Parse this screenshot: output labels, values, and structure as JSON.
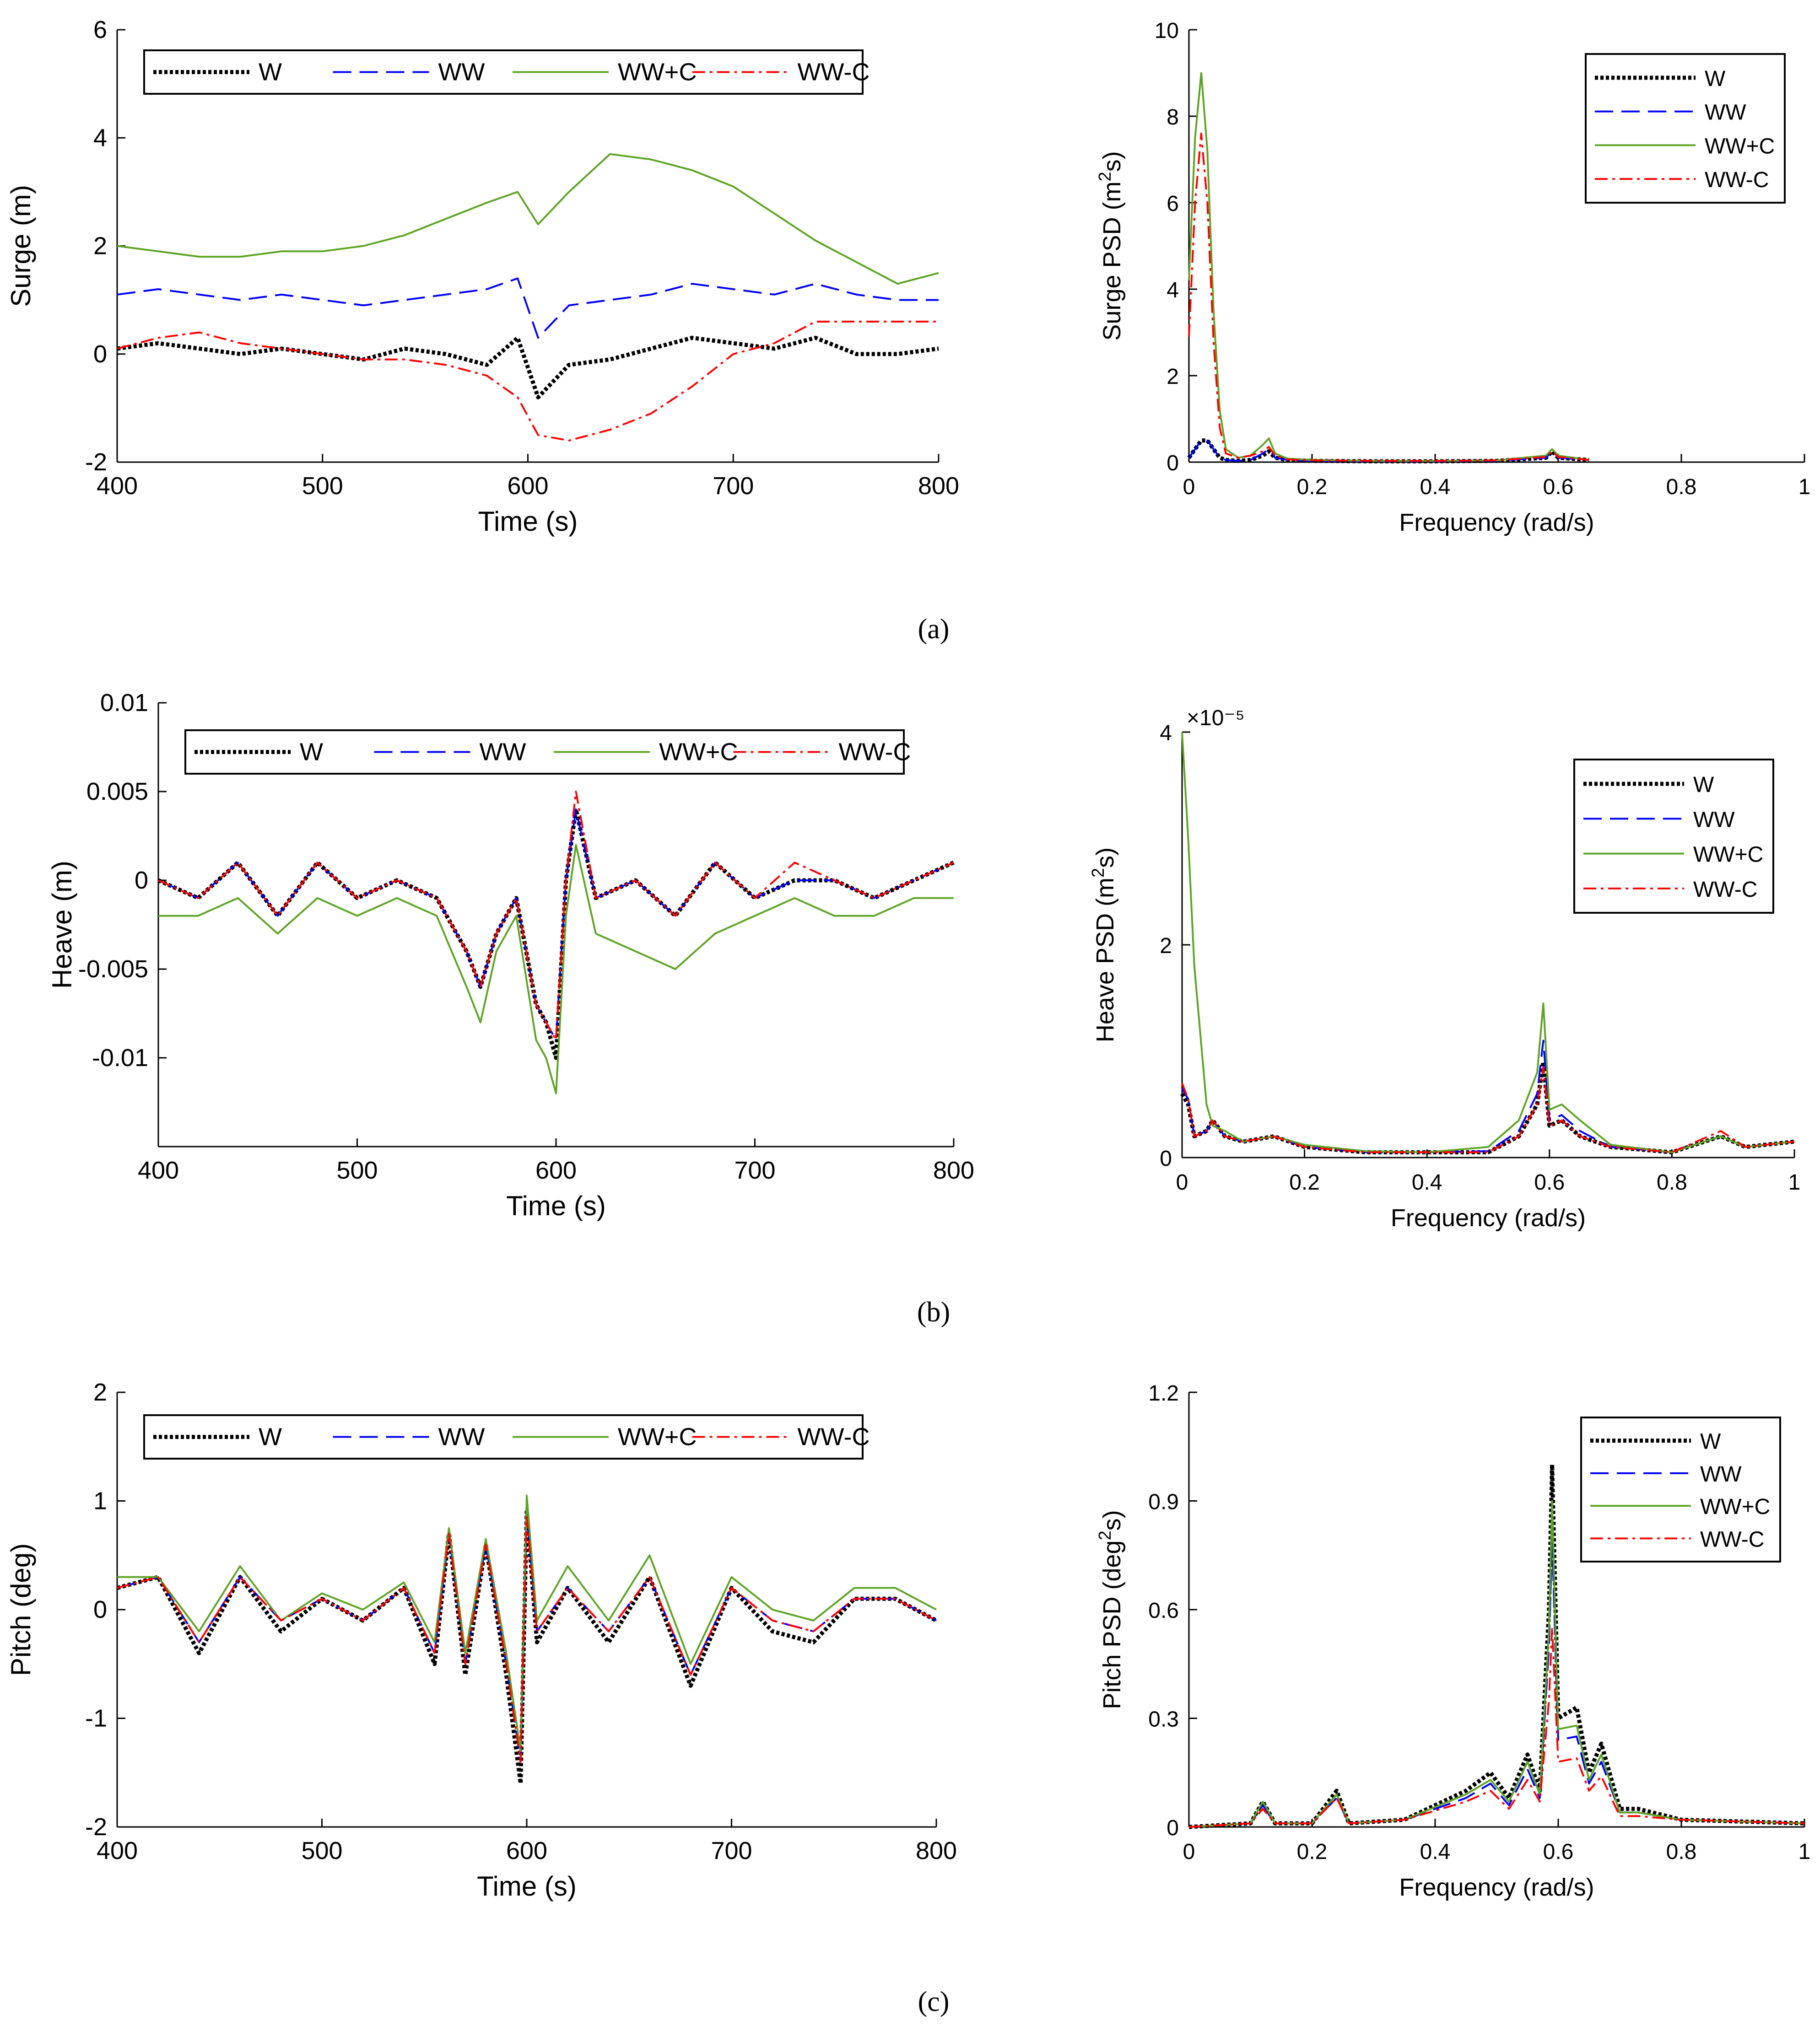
{
  "colors": {
    "W": "#000000",
    "WW": "#0000ff",
    "WW+C": "#5da423",
    "WW-C": "#ff0000"
  },
  "legend_entries": [
    "W",
    "WW",
    "WW+C",
    "WW-C"
  ],
  "panel_labels": [
    "a",
    "b",
    "c"
  ],
  "chart_data": [
    {
      "id": "surge_time",
      "type": "line",
      "xlabel": "Time (s)",
      "ylabel": "Surge (m)",
      "xlim": [
        400,
        800
      ],
      "ylim": [
        -2,
        6
      ],
      "xticks": [
        400,
        500,
        600,
        700,
        800
      ],
      "yticks": [
        -2,
        0,
        2,
        4,
        6
      ],
      "xtick_labels": [
        "400",
        "500",
        "600",
        "700",
        "800"
      ],
      "ytick_labels": [
        "-2",
        "0",
        "2",
        "4",
        "6"
      ],
      "legend": "top-horizontal",
      "x": [
        400,
        420,
        440,
        460,
        480,
        500,
        520,
        540,
        560,
        580,
        595,
        605,
        620,
        640,
        660,
        680,
        700,
        720,
        740,
        760,
        780,
        800
      ],
      "series": [
        {
          "name": "W",
          "values": [
            0.1,
            0.2,
            0.1,
            0.0,
            0.1,
            0.0,
            -0.1,
            0.1,
            0.0,
            -0.2,
            0.3,
            -0.8,
            -0.2,
            -0.1,
            0.1,
            0.3,
            0.2,
            0.1,
            0.3,
            0.0,
            0.0,
            0.1
          ]
        },
        {
          "name": "WW",
          "values": [
            1.1,
            1.2,
            1.1,
            1.0,
            1.1,
            1.0,
            0.9,
            1.0,
            1.1,
            1.2,
            1.4,
            0.3,
            0.9,
            1.0,
            1.1,
            1.3,
            1.2,
            1.1,
            1.3,
            1.1,
            1.0,
            1.0
          ]
        },
        {
          "name": "WW+C",
          "values": [
            2.0,
            1.9,
            1.8,
            1.8,
            1.9,
            1.9,
            2.0,
            2.2,
            2.5,
            2.8,
            3.0,
            2.4,
            3.0,
            3.7,
            3.6,
            3.4,
            3.1,
            2.6,
            2.1,
            1.7,
            1.3,
            1.5
          ]
        },
        {
          "name": "WW-C",
          "values": [
            0.1,
            0.3,
            0.4,
            0.2,
            0.1,
            0.0,
            -0.1,
            -0.1,
            -0.2,
            -0.4,
            -0.8,
            -1.5,
            -1.6,
            -1.4,
            -1.1,
            -0.6,
            0.0,
            0.2,
            0.6,
            0.6,
            0.6,
            0.6
          ]
        }
      ]
    },
    {
      "id": "surge_psd",
      "type": "line",
      "xlabel": "Frequency (rad/s)",
      "ylabel": "Surge PSD (m²s)",
      "xlim": [
        0,
        1
      ],
      "ylim": [
        0,
        10
      ],
      "xticks": [
        0,
        0.2,
        0.4,
        0.6,
        0.8,
        1
      ],
      "yticks": [
        0,
        2,
        4,
        6,
        8,
        10
      ],
      "xtick_labels": [
        "0",
        "0.2",
        "0.4",
        "0.6",
        "0.8",
        "1"
      ],
      "ytick_labels": [
        "0",
        "2",
        "4",
        "6",
        "8",
        "10"
      ],
      "legend": "top-right",
      "x": [
        0,
        0.01,
        0.02,
        0.03,
        0.04,
        0.05,
        0.06,
        0.08,
        0.1,
        0.12,
        0.13,
        0.14,
        0.16,
        0.2,
        0.3,
        0.4,
        0.5,
        0.58,
        0.59,
        0.6,
        0.65
      ],
      "series": [
        {
          "name": "W",
          "values": [
            0.1,
            0.3,
            0.5,
            0.5,
            0.3,
            0.1,
            0.05,
            0.03,
            0.05,
            0.15,
            0.25,
            0.1,
            0.05,
            0.03,
            0.02,
            0.02,
            0.03,
            0.1,
            0.25,
            0.1,
            0.05
          ]
        },
        {
          "name": "WW",
          "values": [
            0.1,
            0.3,
            0.5,
            0.5,
            0.3,
            0.1,
            0.05,
            0.03,
            0.05,
            0.2,
            0.3,
            0.1,
            0.05,
            0.03,
            0.02,
            0.02,
            0.03,
            0.1,
            0.25,
            0.1,
            0.05
          ]
        },
        {
          "name": "WW+C",
          "values": [
            4.2,
            7.5,
            9.0,
            7.2,
            3.5,
            1.2,
            0.3,
            0.1,
            0.15,
            0.4,
            0.55,
            0.2,
            0.08,
            0.05,
            0.03,
            0.03,
            0.04,
            0.15,
            0.3,
            0.15,
            0.05
          ]
        },
        {
          "name": "WW-C",
          "values": [
            2.9,
            6.0,
            7.6,
            6.0,
            2.8,
            0.8,
            0.2,
            0.1,
            0.15,
            0.25,
            0.35,
            0.15,
            0.06,
            0.04,
            0.03,
            0.03,
            0.04,
            0.12,
            0.25,
            0.12,
            0.05
          ]
        }
      ]
    },
    {
      "id": "heave_time",
      "type": "line",
      "xlabel": "Time (s)",
      "ylabel": "Heave (m)",
      "xlim": [
        400,
        800
      ],
      "ylim": [
        -0.015,
        0.01
      ],
      "xticks": [
        400,
        500,
        600,
        700,
        800
      ],
      "yticks": [
        -0.01,
        -0.005,
        0,
        0.005,
        0.01
      ],
      "xtick_labels": [
        "400",
        "500",
        "600",
        "700",
        "800"
      ],
      "ytick_labels": [
        "-0.01",
        "-0.005",
        "0",
        "0.005",
        "0.01"
      ],
      "legend": "top-horizontal",
      "x": [
        400,
        420,
        440,
        460,
        480,
        500,
        520,
        540,
        555,
        562,
        570,
        580,
        590,
        595,
        600,
        605,
        610,
        620,
        640,
        660,
        680,
        700,
        720,
        740,
        760,
        780,
        800
      ],
      "series": [
        {
          "name": "W",
          "values": [
            0.0,
            -0.001,
            0.001,
            -0.002,
            0.001,
            -0.001,
            0.0,
            -0.001,
            -0.004,
            -0.006,
            -0.003,
            -0.001,
            -0.007,
            -0.008,
            -0.01,
            0.0,
            0.004,
            -0.001,
            0.0,
            -0.002,
            0.001,
            -0.001,
            0.0,
            0.0,
            -0.001,
            0.0,
            0.001
          ]
        },
        {
          "name": "WW",
          "values": [
            0.0,
            -0.001,
            0.001,
            -0.002,
            0.001,
            -0.001,
            0.0,
            -0.001,
            -0.004,
            -0.006,
            -0.003,
            -0.001,
            -0.007,
            -0.008,
            -0.009,
            0.0,
            0.004,
            -0.001,
            0.0,
            -0.002,
            0.001,
            -0.001,
            0.0,
            0.0,
            -0.001,
            0.0,
            0.001
          ]
        },
        {
          "name": "WW+C",
          "values": [
            -0.002,
            -0.002,
            -0.001,
            -0.003,
            -0.001,
            -0.002,
            -0.001,
            -0.002,
            -0.006,
            -0.008,
            -0.004,
            -0.002,
            -0.009,
            -0.01,
            -0.012,
            -0.002,
            0.002,
            -0.003,
            -0.004,
            -0.005,
            -0.003,
            -0.002,
            -0.001,
            -0.002,
            -0.002,
            -0.001,
            -0.001
          ]
        },
        {
          "name": "WW-C",
          "values": [
            0.0,
            -0.001,
            0.001,
            -0.002,
            0.001,
            -0.001,
            0.0,
            -0.001,
            -0.004,
            -0.006,
            -0.003,
            -0.001,
            -0.007,
            -0.008,
            -0.009,
            0.0,
            0.005,
            -0.001,
            0.0,
            -0.002,
            0.001,
            -0.001,
            0.001,
            0.0,
            -0.001,
            0.0,
            0.001
          ]
        }
      ]
    },
    {
      "id": "heave_psd",
      "type": "line",
      "xlabel": "Frequency (rad/s)",
      "ylabel": "Heave PSD (m²s)",
      "exponent_label": "×10⁻⁵",
      "xlim": [
        0,
        1
      ],
      "ylim": [
        0,
        4
      ],
      "xticks": [
        0,
        0.2,
        0.4,
        0.6,
        0.8,
        1
      ],
      "yticks": [
        0,
        2,
        4
      ],
      "xtick_labels": [
        "0",
        "0.2",
        "0.4",
        "0.6",
        "0.8",
        "1"
      ],
      "ytick_labels": [
        "0",
        "2",
        "4"
      ],
      "legend": "top-right",
      "x": [
        0,
        0.01,
        0.02,
        0.04,
        0.05,
        0.07,
        0.1,
        0.15,
        0.2,
        0.3,
        0.4,
        0.5,
        0.55,
        0.58,
        0.59,
        0.6,
        0.62,
        0.65,
        0.7,
        0.8,
        0.88,
        0.92,
        1.0
      ],
      "series": [
        {
          "name": "W",
          "values": [
            0.6,
            0.5,
            0.2,
            0.25,
            0.35,
            0.2,
            0.15,
            0.2,
            0.1,
            0.05,
            0.05,
            0.05,
            0.2,
            0.5,
            0.9,
            0.3,
            0.35,
            0.2,
            0.1,
            0.05,
            0.2,
            0.1,
            0.15
          ]
        },
        {
          "name": "WW",
          "values": [
            0.65,
            0.55,
            0.2,
            0.25,
            0.35,
            0.2,
            0.15,
            0.2,
            0.1,
            0.05,
            0.05,
            0.06,
            0.25,
            0.6,
            1.1,
            0.35,
            0.4,
            0.25,
            0.1,
            0.05,
            0.2,
            0.1,
            0.15
          ]
        },
        {
          "name": "WW+C",
          "values": [
            4.0,
            3.0,
            1.8,
            0.5,
            0.3,
            0.25,
            0.15,
            0.2,
            0.12,
            0.06,
            0.05,
            0.1,
            0.35,
            0.8,
            1.45,
            0.45,
            0.5,
            0.35,
            0.12,
            0.05,
            0.2,
            0.1,
            0.15
          ]
        },
        {
          "name": "WW-C",
          "values": [
            0.7,
            0.55,
            0.2,
            0.25,
            0.35,
            0.2,
            0.15,
            0.2,
            0.1,
            0.05,
            0.05,
            0.05,
            0.2,
            0.5,
            0.85,
            0.3,
            0.35,
            0.2,
            0.1,
            0.05,
            0.25,
            0.1,
            0.15
          ]
        }
      ]
    },
    {
      "id": "pitch_time",
      "type": "line",
      "xlabel": "Time (s)",
      "ylabel": "Pitch (deg)",
      "xlim": [
        400,
        800
      ],
      "ylim": [
        -2,
        2
      ],
      "xticks": [
        400,
        500,
        600,
        700,
        800
      ],
      "yticks": [
        -2,
        -1,
        0,
        1,
        2
      ],
      "xtick_labels": [
        "400",
        "500",
        "600",
        "700",
        "800"
      ],
      "ytick_labels": [
        "-2",
        "-1",
        "0",
        "1",
        "2"
      ],
      "legend": "top-horizontal",
      "x": [
        400,
        420,
        440,
        460,
        480,
        500,
        520,
        540,
        555,
        562,
        570,
        580,
        590,
        597,
        600,
        605,
        620,
        640,
        660,
        680,
        700,
        720,
        740,
        760,
        780,
        800
      ],
      "series": [
        {
          "name": "W",
          "values": [
            0.2,
            0.3,
            -0.4,
            0.3,
            -0.2,
            0.1,
            -0.1,
            0.2,
            -0.5,
            0.7,
            -0.6,
            0.6,
            -0.6,
            -1.6,
            0.9,
            -0.3,
            0.2,
            -0.3,
            0.3,
            -0.7,
            0.2,
            -0.2,
            -0.3,
            0.1,
            0.1,
            -0.1
          ]
        },
        {
          "name": "WW",
          "values": [
            0.2,
            0.3,
            -0.3,
            0.3,
            -0.1,
            0.1,
            -0.1,
            0.2,
            -0.4,
            0.7,
            -0.5,
            0.6,
            -0.5,
            -1.4,
            0.9,
            -0.2,
            0.2,
            -0.2,
            0.3,
            -0.6,
            0.2,
            -0.1,
            -0.2,
            0.1,
            0.1,
            -0.1
          ]
        },
        {
          "name": "WW+C",
          "values": [
            0.3,
            0.3,
            -0.2,
            0.4,
            -0.1,
            0.15,
            0.0,
            0.25,
            -0.3,
            0.75,
            -0.4,
            0.65,
            -0.4,
            -1.3,
            1.05,
            -0.1,
            0.4,
            -0.1,
            0.5,
            -0.5,
            0.3,
            0.0,
            -0.1,
            0.2,
            0.2,
            0.0
          ]
        },
        {
          "name": "WW-C",
          "values": [
            0.2,
            0.3,
            -0.3,
            0.3,
            -0.1,
            0.1,
            -0.1,
            0.2,
            -0.4,
            0.7,
            -0.5,
            0.6,
            -0.5,
            -1.4,
            0.85,
            -0.2,
            0.2,
            -0.2,
            0.3,
            -0.6,
            0.2,
            -0.1,
            -0.2,
            0.1,
            0.1,
            -0.1
          ]
        }
      ]
    },
    {
      "id": "pitch_psd",
      "type": "line",
      "xlabel": "Frequency (rad/s)",
      "ylabel": "Pitch PSD (deg²s)",
      "xlim": [
        0,
        1
      ],
      "ylim": [
        0,
        1.2
      ],
      "xticks": [
        0,
        0.2,
        0.4,
        0.6,
        0.8,
        1
      ],
      "yticks": [
        0,
        0.3,
        0.6,
        0.9,
        1.2
      ],
      "xtick_labels": [
        "0",
        "0.2",
        "0.4",
        "0.6",
        "0.8",
        "1"
      ],
      "ytick_labels": [
        "0",
        "0.3",
        "0.6",
        "0.9",
        "1.2"
      ],
      "legend": "top-right",
      "x": [
        0,
        0.1,
        0.12,
        0.14,
        0.2,
        0.24,
        0.26,
        0.35,
        0.45,
        0.49,
        0.52,
        0.55,
        0.57,
        0.585,
        0.59,
        0.6,
        0.63,
        0.65,
        0.67,
        0.7,
        0.73,
        0.8,
        1.0
      ],
      "series": [
        {
          "name": "W",
          "values": [
            0.0,
            0.01,
            0.07,
            0.01,
            0.01,
            0.1,
            0.01,
            0.02,
            0.1,
            0.15,
            0.08,
            0.2,
            0.1,
            0.6,
            1.0,
            0.3,
            0.33,
            0.15,
            0.23,
            0.05,
            0.05,
            0.02,
            0.01
          ]
        },
        {
          "name": "WW",
          "values": [
            0.0,
            0.01,
            0.06,
            0.01,
            0.01,
            0.08,
            0.01,
            0.02,
            0.08,
            0.12,
            0.06,
            0.16,
            0.08,
            0.5,
            0.8,
            0.24,
            0.25,
            0.12,
            0.18,
            0.04,
            0.04,
            0.02,
            0.01
          ]
        },
        {
          "name": "WW+C",
          "values": [
            0.0,
            0.01,
            0.07,
            0.01,
            0.01,
            0.09,
            0.01,
            0.02,
            0.09,
            0.13,
            0.07,
            0.18,
            0.09,
            0.55,
            0.9,
            0.27,
            0.28,
            0.13,
            0.2,
            0.04,
            0.04,
            0.02,
            0.01
          ]
        },
        {
          "name": "WW-C",
          "values": [
            0.0,
            0.01,
            0.05,
            0.01,
            0.01,
            0.08,
            0.01,
            0.02,
            0.07,
            0.1,
            0.05,
            0.13,
            0.07,
            0.35,
            0.55,
            0.18,
            0.19,
            0.1,
            0.14,
            0.03,
            0.03,
            0.02,
            0.01
          ]
        }
      ]
    }
  ]
}
